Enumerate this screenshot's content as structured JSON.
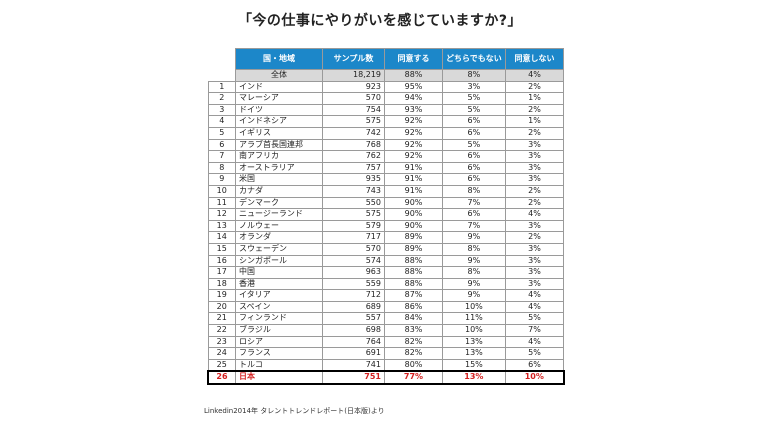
{
  "title": "「今の仕事にやりがいを感じていますか?」",
  "columns": [
    "国・地域",
    "サンプル数",
    "同意する",
    "どちらでもない",
    "同意しない"
  ],
  "total": {
    "label": "全体",
    "sample": "18,219",
    "agree": "88%",
    "neutral": "8%",
    "disagree": "4%"
  },
  "rows": [
    {
      "rank": "1",
      "name": "インド",
      "sample": "923",
      "agree": "95%",
      "neutral": "3%",
      "disagree": "2%"
    },
    {
      "rank": "2",
      "name": "マレーシア",
      "sample": "570",
      "agree": "94%",
      "neutral": "5%",
      "disagree": "1%"
    },
    {
      "rank": "3",
      "name": "ドイツ",
      "sample": "754",
      "agree": "93%",
      "neutral": "5%",
      "disagree": "2%"
    },
    {
      "rank": "4",
      "name": "インドネシア",
      "sample": "575",
      "agree": "92%",
      "neutral": "6%",
      "disagree": "1%"
    },
    {
      "rank": "5",
      "name": "イギリス",
      "sample": "742",
      "agree": "92%",
      "neutral": "6%",
      "disagree": "2%"
    },
    {
      "rank": "6",
      "name": "アラブ首長国連邦",
      "sample": "768",
      "agree": "92%",
      "neutral": "5%",
      "disagree": "3%"
    },
    {
      "rank": "7",
      "name": "南アフリカ",
      "sample": "762",
      "agree": "92%",
      "neutral": "6%",
      "disagree": "3%"
    },
    {
      "rank": "8",
      "name": "オーストラリア",
      "sample": "757",
      "agree": "91%",
      "neutral": "6%",
      "disagree": "3%"
    },
    {
      "rank": "9",
      "name": "米国",
      "sample": "935",
      "agree": "91%",
      "neutral": "6%",
      "disagree": "3%"
    },
    {
      "rank": "10",
      "name": "カナダ",
      "sample": "743",
      "agree": "91%",
      "neutral": "8%",
      "disagree": "2%"
    },
    {
      "rank": "11",
      "name": "デンマーク",
      "sample": "550",
      "agree": "90%",
      "neutral": "7%",
      "disagree": "2%"
    },
    {
      "rank": "12",
      "name": "ニュージーランド",
      "sample": "575",
      "agree": "90%",
      "neutral": "6%",
      "disagree": "4%"
    },
    {
      "rank": "13",
      "name": "ノルウェー",
      "sample": "579",
      "agree": "90%",
      "neutral": "7%",
      "disagree": "3%"
    },
    {
      "rank": "14",
      "name": "オランダ",
      "sample": "717",
      "agree": "89%",
      "neutral": "9%",
      "disagree": "2%"
    },
    {
      "rank": "15",
      "name": "スウェーデン",
      "sample": "570",
      "agree": "89%",
      "neutral": "8%",
      "disagree": "3%"
    },
    {
      "rank": "16",
      "name": "シンガポール",
      "sample": "574",
      "agree": "88%",
      "neutral": "9%",
      "disagree": "3%"
    },
    {
      "rank": "17",
      "name": "中国",
      "sample": "963",
      "agree": "88%",
      "neutral": "8%",
      "disagree": "3%"
    },
    {
      "rank": "18",
      "name": "香港",
      "sample": "559",
      "agree": "88%",
      "neutral": "9%",
      "disagree": "3%"
    },
    {
      "rank": "19",
      "name": "イタリア",
      "sample": "712",
      "agree": "87%",
      "neutral": "9%",
      "disagree": "4%"
    },
    {
      "rank": "20",
      "name": "スペイン",
      "sample": "689",
      "agree": "86%",
      "neutral": "10%",
      "disagree": "4%"
    },
    {
      "rank": "21",
      "name": "フィンランド",
      "sample": "557",
      "agree": "84%",
      "neutral": "11%",
      "disagree": "5%"
    },
    {
      "rank": "22",
      "name": "ブラジル",
      "sample": "698",
      "agree": "83%",
      "neutral": "10%",
      "disagree": "7%"
    },
    {
      "rank": "23",
      "name": "ロシア",
      "sample": "764",
      "agree": "82%",
      "neutral": "13%",
      "disagree": "4%"
    },
    {
      "rank": "24",
      "name": "フランス",
      "sample": "691",
      "agree": "82%",
      "neutral": "13%",
      "disagree": "5%"
    },
    {
      "rank": "25",
      "name": "トルコ",
      "sample": "741",
      "agree": "80%",
      "neutral": "15%",
      "disagree": "6%"
    }
  ],
  "highlight": {
    "rank": "26",
    "name": "日本",
    "sample": "751",
    "agree": "77%",
    "neutral": "13%",
    "disagree": "10%"
  },
  "source": "Linkedin2014年 タレントトレンドレポート(日本版)より"
}
